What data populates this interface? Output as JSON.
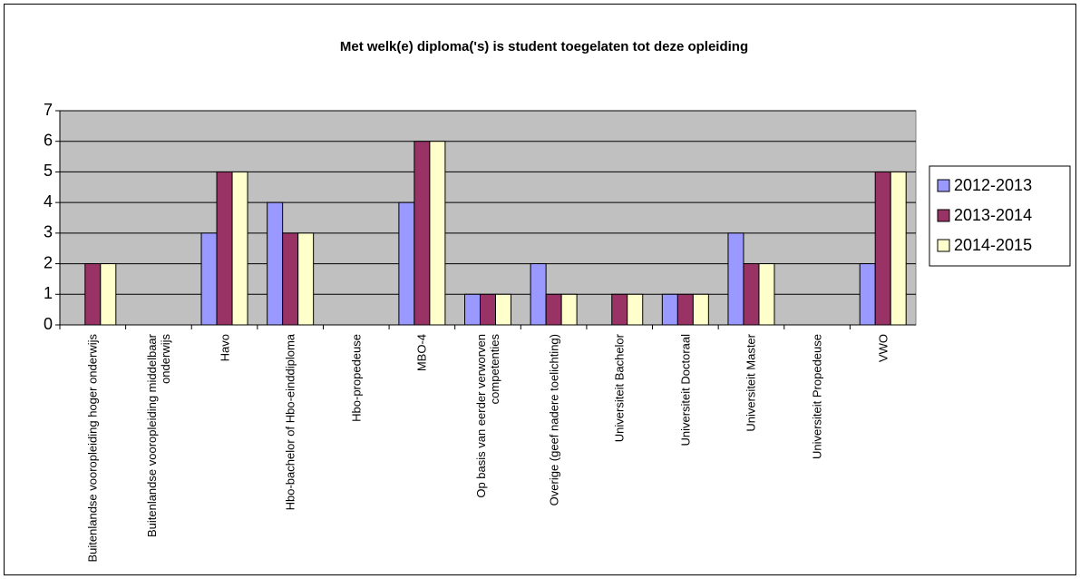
{
  "chart_data": {
    "type": "bar",
    "title": "Met welk(e) diploma('s) is student toegelaten tot deze opleiding",
    "categories": [
      "Buitenlandse vooropleiding hoger onderwijs",
      "Buitenlandse vooropleiding middelbaar onderwijs",
      "Havo",
      "Hbo-bachelor of Hbo-einddiploma",
      "Hbo-propedeuse",
      "MBO-4",
      "Op basis van eerder verworven competenties",
      "Overige (geef nadere toelichting)",
      "Universiteit Bachelor",
      "Universiteit Doctoraal",
      "Universiteit Master",
      "Universiteit Propedeuse",
      "VWO"
    ],
    "series": [
      {
        "name": "2012-2013",
        "color": "#9999ff",
        "values": [
          0,
          0,
          3,
          4,
          0,
          4,
          1,
          2,
          0,
          1,
          3,
          0,
          2
        ]
      },
      {
        "name": "2013-2014",
        "color": "#993366",
        "values": [
          2,
          0,
          5,
          3,
          0,
          6,
          1,
          1,
          1,
          1,
          2,
          0,
          5
        ]
      },
      {
        "name": "2014-2015",
        "color": "#ffffcc",
        "values": [
          2,
          0,
          5,
          3,
          0,
          6,
          1,
          1,
          1,
          1,
          2,
          0,
          5
        ]
      }
    ],
    "ylim": [
      0,
      7
    ],
    "yticks": [
      0,
      1,
      2,
      3,
      4,
      5,
      6,
      7
    ],
    "grid": true,
    "legend": "right"
  }
}
